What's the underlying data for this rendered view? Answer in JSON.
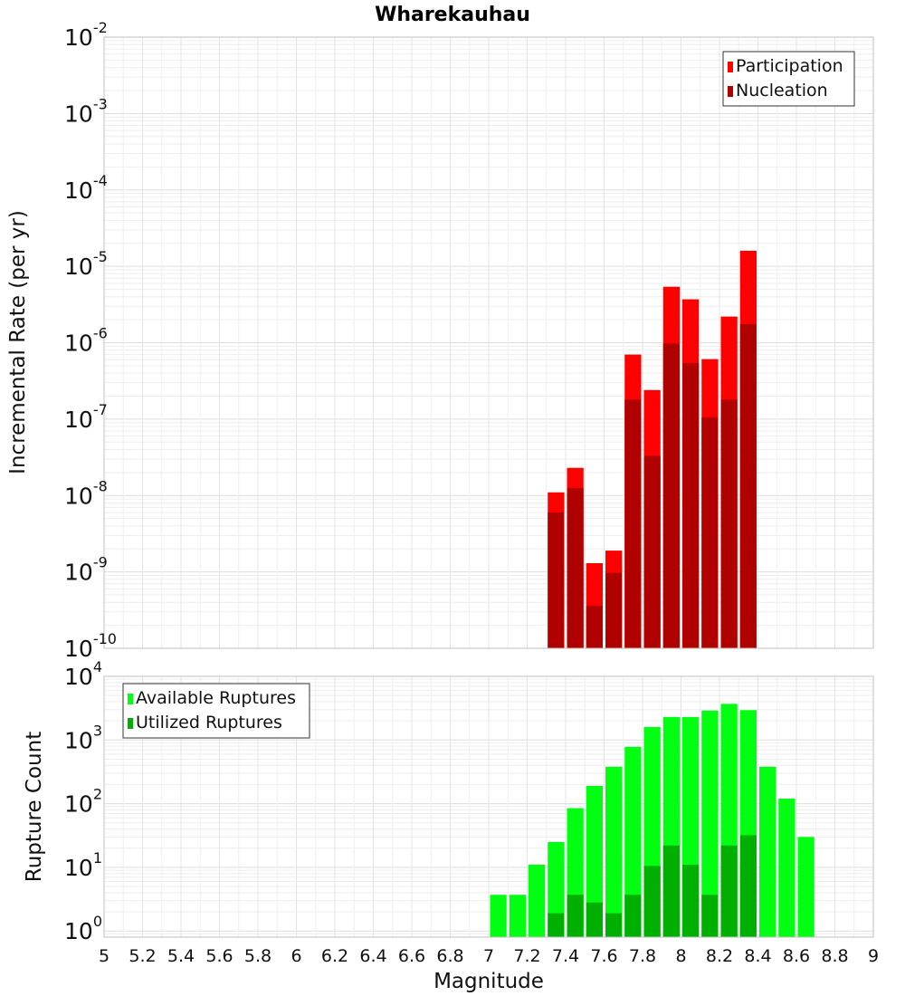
{
  "title": "Wharekauhau",
  "x_axis": {
    "label": "Magnitude",
    "min": 5,
    "max": 9,
    "ticks": [
      "5",
      "5.2",
      "5.4",
      "5.6",
      "5.8",
      "6",
      "6.2",
      "6.4",
      "6.6",
      "6.8",
      "7",
      "7.2",
      "7.4",
      "7.6",
      "7.8",
      "8",
      "8.2",
      "8.4",
      "8.6",
      "8.8",
      "9"
    ]
  },
  "colors": {
    "participation": "#ff0000",
    "nucleation": "#b00000",
    "available": "#00ff11",
    "utilized": "#00b000",
    "grid": "#e6e6e6",
    "frame": "#bfbfbf"
  },
  "chart_data": [
    {
      "type": "bar",
      "title": "Wharekauhau",
      "xlabel": "Magnitude",
      "ylabel": "Incremental Rate (per yr)",
      "yscale": "log",
      "xlim": [
        5,
        9
      ],
      "ylim": [
        1e-10,
        0.01
      ],
      "grid": true,
      "legend_position": "top-right",
      "y_tick_exponents": [
        "-10",
        "-9",
        "-8",
        "-7",
        "-6",
        "-5",
        "-4",
        "-3",
        "-2"
      ],
      "x": [
        7.35,
        7.45,
        7.55,
        7.65,
        7.75,
        7.85,
        7.95,
        8.05,
        8.15,
        8.25,
        8.35
      ],
      "series": [
        {
          "name": "Participation",
          "values": [
            1.1e-08,
            2.3e-08,
            1.3e-09,
            1.9e-09,
            7e-07,
            2.4e-07,
            5.4e-06,
            3.7e-06,
            6.1e-07,
            2.2e-06,
            1.6e-05
          ]
        },
        {
          "name": "Nucleation",
          "values": [
            6e-09,
            1.25e-08,
            3.6e-10,
            9.7e-10,
            1.8e-07,
            3.3e-08,
            9.8e-07,
            5.4e-07,
            1.05e-07,
            1.8e-07,
            1.75e-06
          ]
        }
      ]
    },
    {
      "type": "bar",
      "xlabel": "Magnitude",
      "ylabel": "Rupture Count",
      "yscale": "log",
      "xlim": [
        5,
        9
      ],
      "ylim": [
        0.8,
        10000
      ],
      "grid": true,
      "legend_position": "top-left",
      "y_tick_exponents": [
        "0",
        "1",
        "2",
        "3",
        "4"
      ],
      "x": [
        7.05,
        7.15,
        7.25,
        7.35,
        7.45,
        7.55,
        7.65,
        7.75,
        7.85,
        7.95,
        8.05,
        8.15,
        8.25,
        8.35,
        8.45,
        8.55,
        8.65
      ],
      "series": [
        {
          "name": "Available Ruptures",
          "values": [
            3.7,
            3.7,
            11,
            25,
            85,
            190,
            380,
            780,
            1600,
            2300,
            2300,
            2900,
            3700,
            2950,
            380,
            120,
            30
          ]
        },
        {
          "name": "Utilized Ruptures",
          "values": [
            null,
            null,
            null,
            1.9,
            3.7,
            2.8,
            1.9,
            3.7,
            10.5,
            22,
            11,
            3.7,
            22,
            32,
            null,
            null,
            null
          ]
        }
      ]
    }
  ]
}
